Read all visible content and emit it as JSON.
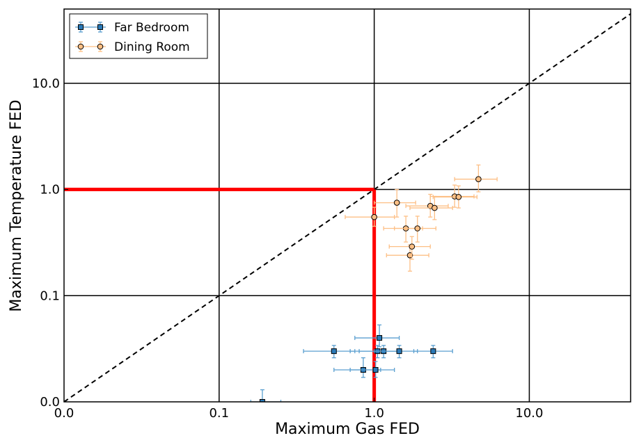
{
  "chart_data": {
    "type": "scatter",
    "title": "",
    "xlabel": "Maximum Gas FED",
    "ylabel": "Maximum Temperature FED",
    "x_scale": "log",
    "y_scale": "log",
    "xlim": [
      0.01,
      45
    ],
    "ylim": [
      0.01,
      50
    ],
    "x_ticks": [
      0.01,
      0.1,
      1,
      10
    ],
    "x_tick_labels": [
      "0.0",
      "0.1",
      "1.0",
      "10.0"
    ],
    "y_ticks": [
      0.01,
      0.1,
      1,
      10
    ],
    "y_tick_labels": [
      "0.0",
      "0.1",
      "1.0",
      "10.0"
    ],
    "grid": true,
    "legend_position": "top-left",
    "reference_lines": [
      {
        "kind": "diagonal",
        "style": "dashed",
        "color": "#000000"
      },
      {
        "kind": "threshold",
        "x": 1.0,
        "y": 1.0,
        "color": "#ff0000"
      }
    ],
    "series": [
      {
        "name": "Far Bedroom",
        "marker": "square",
        "color": "#1f77b4",
        "points": [
          {
            "x": 0.19,
            "y": 0.01,
            "xerr": [
              0.16,
              0.25
            ],
            "yerr": [
              0.01,
              0.013
            ]
          },
          {
            "x": 0.55,
            "y": 0.03,
            "xerr": [
              0.35,
              0.75
            ],
            "yerr": [
              0.026,
              0.034
            ]
          },
          {
            "x": 0.85,
            "y": 0.02,
            "xerr": [
              0.55,
              1.1
            ],
            "yerr": [
              0.017,
              0.026
            ]
          },
          {
            "x": 1.02,
            "y": 0.02,
            "xerr": [
              0.7,
              1.35
            ],
            "yerr": [
              0.017,
              0.024
            ]
          },
          {
            "x": 1.05,
            "y": 0.03,
            "xerr": [
              0.7,
              1.4
            ],
            "yerr": [
              0.026,
              0.034
            ]
          },
          {
            "x": 1.08,
            "y": 0.04,
            "xerr": [
              0.75,
              1.45
            ],
            "yerr": [
              0.033,
              0.053
            ]
          },
          {
            "x": 1.15,
            "y": 0.03,
            "xerr": [
              0.8,
              1.5
            ],
            "yerr": [
              0.026,
              0.034
            ]
          },
          {
            "x": 1.45,
            "y": 0.03,
            "xerr": [
              1.0,
              1.9
            ],
            "yerr": [
              0.026,
              0.034
            ]
          },
          {
            "x": 2.4,
            "y": 0.03,
            "xerr": [
              1.8,
              3.2
            ],
            "yerr": [
              0.026,
              0.034
            ]
          }
        ]
      },
      {
        "name": "Dining Room",
        "marker": "circle",
        "color": "#ff7f0e",
        "points": [
          {
            "x": 1.0,
            "y": 0.55,
            "xerr": [
              0.65,
              1.35
            ],
            "yerr": [
              0.45,
              0.68
            ]
          },
          {
            "x": 1.4,
            "y": 0.75,
            "xerr": [
              1.0,
              1.85
            ],
            "yerr": [
              0.55,
              1.0
            ]
          },
          {
            "x": 1.6,
            "y": 0.43,
            "xerr": [
              1.15,
              2.05
            ],
            "yerr": [
              0.32,
              0.56
            ]
          },
          {
            "x": 1.7,
            "y": 0.24,
            "xerr": [
              1.2,
              2.25
            ],
            "yerr": [
              0.17,
              0.3
            ]
          },
          {
            "x": 1.75,
            "y": 0.29,
            "xerr": [
              1.25,
              2.3
            ],
            "yerr": [
              0.22,
              0.36
            ]
          },
          {
            "x": 1.9,
            "y": 0.43,
            "xerr": [
              1.35,
              2.5
            ],
            "yerr": [
              0.32,
              0.56
            ]
          },
          {
            "x": 2.3,
            "y": 0.7,
            "xerr": [
              1.6,
              3.0
            ],
            "yerr": [
              0.55,
              0.9
            ]
          },
          {
            "x": 2.45,
            "y": 0.67,
            "xerr": [
              1.7,
              3.2
            ],
            "yerr": [
              0.52,
              0.86
            ]
          },
          {
            "x": 3.3,
            "y": 0.86,
            "xerr": [
              2.3,
              4.4
            ],
            "yerr": [
              0.68,
              1.1
            ]
          },
          {
            "x": 3.5,
            "y": 0.85,
            "xerr": [
              2.4,
              4.6
            ],
            "yerr": [
              0.67,
              1.08
            ]
          },
          {
            "x": 4.7,
            "y": 1.25,
            "xerr": [
              3.3,
              6.2
            ],
            "yerr": [
              0.95,
              1.7
            ]
          }
        ]
      }
    ]
  }
}
